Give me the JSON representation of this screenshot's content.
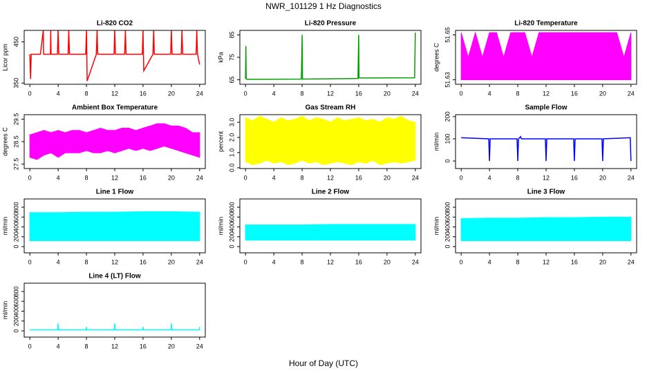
{
  "title": "NWR_101129  1 Hz Diagnostics",
  "x_label": "Hour of Day (UTC)",
  "chart_data": [
    {
      "type": "line",
      "title": "Li-820 CO2",
      "y_label": "Licor ppm",
      "color": "#ff0000",
      "xlim": [
        -0.8,
        24.8
      ],
      "ylim": [
        347,
        478
      ],
      "xticks": [
        0,
        4,
        8,
        12,
        16,
        20,
        24
      ],
      "yticks": [
        350,
        450
      ],
      "x": [
        0,
        0.1,
        0.2,
        1.5,
        1.9,
        1.95,
        2.0,
        2.9,
        2.95,
        3.0,
        3.9,
        4.0,
        4.1,
        5.4,
        5.5,
        5.6,
        7.9,
        8.0,
        8.1,
        9.4,
        9.5,
        9.6,
        11.9,
        12.0,
        12.1,
        13.4,
        13.5,
        13.6,
        15.9,
        16.0,
        16.1,
        17.4,
        17.5,
        17.6,
        19.9,
        20.0,
        20.1,
        21.4,
        21.5,
        21.6,
        23.5,
        23.6,
        23.7,
        24.0
      ],
      "values": [
        420,
        360,
        420,
        420,
        478,
        420,
        420,
        420,
        478,
        420,
        420,
        478,
        420,
        420,
        478,
        420,
        420,
        478,
        355,
        420,
        478,
        420,
        420,
        478,
        420,
        420,
        478,
        420,
        420,
        478,
        380,
        420,
        478,
        420,
        420,
        478,
        420,
        420,
        478,
        420,
        420,
        478,
        420,
        395
      ]
    },
    {
      "type": "line",
      "title": "Li-820 Pressure",
      "y_label": "kPa",
      "color": "#00a000",
      "xlim": [
        -0.8,
        24.8
      ],
      "ylim": [
        63,
        87
      ],
      "xticks": [
        0,
        4,
        8,
        12,
        16,
        20,
        24
      ],
      "yticks": [
        65,
        75,
        85
      ],
      "x": [
        0,
        0.05,
        0.1,
        0.2,
        7.9,
        8.0,
        8.05,
        15.9,
        16.0,
        16.05,
        23.9,
        24.0
      ],
      "values": [
        65.5,
        80,
        65.3,
        65.2,
        65.3,
        85,
        65.3,
        65.6,
        85,
        65.8,
        65.9,
        86
      ]
    },
    {
      "type": "band",
      "title": "Li-820 Temperature",
      "y_label": "degrees C",
      "color": "#ff00ff",
      "xlim": [
        -0.8,
        24.8
      ],
      "ylim": [
        51.628,
        51.652
      ],
      "xticks": [
        0,
        4,
        8,
        12,
        16,
        20,
        24
      ],
      "yticks": [
        51.63,
        51.65
      ],
      "x": [
        0,
        1,
        2,
        3,
        4,
        5,
        6,
        7,
        8,
        9,
        10,
        11,
        12,
        13,
        14,
        15,
        16,
        17,
        18,
        19,
        20,
        21,
        22,
        23,
        24
      ],
      "low": [
        51.63,
        51.63,
        51.63,
        51.63,
        51.63,
        51.63,
        51.63,
        51.63,
        51.63,
        51.63,
        51.63,
        51.63,
        51.63,
        51.63,
        51.63,
        51.63,
        51.63,
        51.63,
        51.63,
        51.63,
        51.63,
        51.63,
        51.63,
        51.63,
        51.63
      ],
      "high": [
        51.651,
        51.64,
        51.651,
        51.64,
        51.651,
        51.651,
        51.64,
        51.651,
        51.651,
        51.651,
        51.64,
        51.651,
        51.651,
        51.651,
        51.651,
        51.651,
        51.651,
        51.651,
        51.651,
        51.651,
        51.651,
        51.651,
        51.651,
        51.64,
        51.651
      ]
    },
    {
      "type": "band",
      "title": "Ambient Box Temperature",
      "y_label": "degrees C",
      "color": "#ff00ff",
      "xlim": [
        -0.8,
        24.8
      ],
      "ylim": [
        27.3,
        29.7
      ],
      "xticks": [
        0,
        4,
        8,
        12,
        16,
        20,
        24
      ],
      "yticks": [
        27.5,
        28.5,
        29.5
      ],
      "x": [
        0,
        1,
        2,
        3,
        4,
        5,
        6,
        7,
        8,
        9,
        10,
        11,
        12,
        13,
        14,
        15,
        16,
        17,
        18,
        19,
        20,
        21,
        22,
        23,
        24
      ],
      "low": [
        27.8,
        27.7,
        27.9,
        28.0,
        27.8,
        28.0,
        28.0,
        28.0,
        28.1,
        28.0,
        28.0,
        28.1,
        28.0,
        28.1,
        28.2,
        28.1,
        28.2,
        28.1,
        28.2,
        28.3,
        28.2,
        28.1,
        28.0,
        27.9,
        27.8
      ],
      "high": [
        28.8,
        28.9,
        29.0,
        28.9,
        29.0,
        28.9,
        29.0,
        29.0,
        28.9,
        29.0,
        29.1,
        29.0,
        29.0,
        29.1,
        29.1,
        29.0,
        29.1,
        29.2,
        29.3,
        29.3,
        29.2,
        29.2,
        29.1,
        28.9,
        28.9
      ]
    },
    {
      "type": "band",
      "title": "Gas Stream RH",
      "y_label": "percent",
      "color": "#ffff00",
      "xlim": [
        -0.8,
        24.8
      ],
      "ylim": [
        -0.05,
        3.5
      ],
      "xticks": [
        0,
        4,
        8,
        12,
        16,
        20,
        24
      ],
      "yticks": [
        {
          "value": 0,
          "label": "0.0"
        },
        {
          "value": 1,
          "label": "1.0"
        },
        {
          "value": 2,
          "label": "2.0"
        },
        {
          "value": 3,
          "label": "3.0"
        }
      ],
      "x": [
        0,
        1,
        2,
        3,
        4,
        5,
        6,
        7,
        8,
        9,
        10,
        11,
        12,
        13,
        14,
        15,
        16,
        17,
        18,
        19,
        20,
        21,
        22,
        23,
        24
      ],
      "low": [
        0.4,
        0.2,
        0.3,
        0.5,
        0.3,
        0.4,
        0.2,
        0.3,
        0.5,
        0.3,
        0.4,
        0.2,
        0.3,
        0.4,
        0.3,
        0.2,
        0.4,
        0.3,
        0.5,
        0.2,
        0.3,
        0.4,
        0.3,
        0.4,
        0.5
      ],
      "high": [
        3.3,
        3.1,
        3.4,
        3.2,
        3.0,
        3.3,
        3.1,
        3.2,
        3.4,
        3.1,
        3.3,
        3.2,
        3.0,
        3.3,
        3.1,
        3.2,
        3.3,
        3.1,
        3.2,
        3.0,
        3.3,
        3.2,
        3.4,
        3.1,
        3.0
      ]
    },
    {
      "type": "line",
      "title": "Sample Flow",
      "y_label": "ml/min",
      "color": "#0000ff",
      "xlim": [
        -0.8,
        24.8
      ],
      "ylim": [
        -34,
        209
      ],
      "xticks": [
        0,
        4,
        8,
        12,
        16,
        20,
        24
      ],
      "yticks": [
        0,
        100,
        200
      ],
      "x": [
        0,
        3.9,
        4.0,
        4.1,
        7.9,
        8.0,
        8.1,
        8.4,
        8.5,
        11.9,
        12.0,
        12.1,
        15.9,
        16.0,
        16.1,
        19.9,
        20.0,
        20.1,
        23.9,
        24.0
      ],
      "values": [
        105,
        100,
        0,
        100,
        100,
        0,
        100,
        110,
        100,
        100,
        0,
        100,
        100,
        0,
        100,
        100,
        0,
        100,
        105,
        0
      ]
    },
    {
      "type": "band",
      "title": "Line 1 Flow",
      "y_label": "ml/min",
      "color": "#00ffff",
      "xlim": [
        -0.8,
        24.8
      ],
      "ylim": [
        -126,
        968
      ],
      "xticks": [
        0,
        4,
        8,
        12,
        16,
        20,
        24
      ],
      "yticks": [
        0,
        200,
        400,
        600,
        800
      ],
      "x": [
        0,
        4,
        8,
        12,
        16,
        20,
        24
      ],
      "low": [
        120,
        120,
        120,
        120,
        120,
        120,
        120
      ],
      "high": [
        690,
        690,
        700,
        700,
        710,
        710,
        700
      ]
    },
    {
      "type": "band",
      "title": "Line 2 Flow",
      "y_label": "ml/min",
      "color": "#00ffff",
      "xlim": [
        -0.8,
        24.8
      ],
      "ylim": [
        -126,
        968
      ],
      "xticks": [
        0,
        4,
        8,
        12,
        16,
        20,
        24
      ],
      "yticks": [
        0,
        200,
        400,
        600,
        800
      ],
      "x": [
        0,
        4,
        8,
        12,
        16,
        20,
        24
      ],
      "low": [
        130,
        130,
        130,
        130,
        130,
        130,
        130
      ],
      "high": [
        440,
        440,
        440,
        450,
        450,
        450,
        450
      ]
    },
    {
      "type": "band",
      "title": "Line 3 Flow",
      "y_label": "ml/min",
      "color": "#00ffff",
      "xlim": [
        -0.8,
        24.8
      ],
      "ylim": [
        -126,
        968
      ],
      "xticks": [
        0,
        4,
        8,
        12,
        16,
        20,
        24
      ],
      "yticks": [
        0,
        200,
        400,
        600,
        800
      ],
      "x": [
        0,
        4,
        8,
        12,
        16,
        20,
        24
      ],
      "low": [
        120,
        120,
        120,
        120,
        120,
        120,
        120
      ],
      "high": [
        570,
        580,
        580,
        590,
        590,
        600,
        600
      ]
    },
    {
      "type": "line",
      "title": "Line 4 (LT) Flow",
      "y_label": "ml/min",
      "color": "#00ffff",
      "xlim": [
        -0.8,
        24.8
      ],
      "ylim": [
        -126,
        968
      ],
      "xticks": [
        0,
        4,
        8,
        12,
        16,
        20,
        24
      ],
      "yticks": [
        0,
        200,
        400,
        600,
        800
      ],
      "x": [
        0,
        3.95,
        4.0,
        4.05,
        7.95,
        8.0,
        8.05,
        11.95,
        12.0,
        12.05,
        15.95,
        16.0,
        16.05,
        19.95,
        20.0,
        20.05,
        23.95,
        24.0
      ],
      "values": [
        20,
        20,
        150,
        20,
        20,
        80,
        20,
        20,
        150,
        20,
        20,
        80,
        20,
        20,
        150,
        20,
        20,
        80
      ]
    }
  ]
}
